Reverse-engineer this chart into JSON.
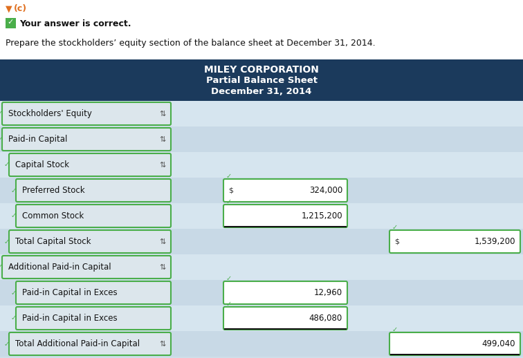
{
  "title_line1": "MILEY CORPORATION",
  "title_line2": "Partial Balance Sheet",
  "title_line3": "December 31, 2014",
  "header_bg": "#1b3a5c",
  "header_text_color": "#ffffff",
  "page_bg": "#cfdee9",
  "row_bg_even": "#d6e5ef",
  "row_bg_odd": "#c8d9e6",
  "green_border": "#4aae4a",
  "green_check_bg": "#4aae4a",
  "label_box_bg": "#dce6ec",
  "value_box_bg": "#ffffff",
  "intro_orange": "#e07020",
  "correct_text": "Your answer is correct.",
  "prepare_text": "Prepare the stockholders’ equity section of the balance sheet at December 31, 2014.",
  "rows": [
    {
      "label": "Stockholders' Equity",
      "indent": 0,
      "type": "header",
      "col2": null,
      "col2_dollar": false,
      "col3": null,
      "col3_dollar": false,
      "underline2": false
    },
    {
      "label": "Paid-in Capital",
      "indent": 0,
      "type": "header",
      "col2": null,
      "col2_dollar": false,
      "col3": null,
      "col3_dollar": false,
      "underline2": false
    },
    {
      "label": "Capital Stock",
      "indent": 1,
      "type": "header",
      "col2": null,
      "col2_dollar": false,
      "col3": null,
      "col3_dollar": false,
      "underline2": false
    },
    {
      "label": "Preferred Stock",
      "indent": 2,
      "type": "value",
      "col2": "324,000",
      "col2_dollar": true,
      "col3": null,
      "col3_dollar": false,
      "underline2": false
    },
    {
      "label": "Common Stock",
      "indent": 2,
      "type": "value",
      "col2": "1,215,200",
      "col2_dollar": false,
      "col3": null,
      "col3_dollar": false,
      "underline2": true
    },
    {
      "label": "Total Capital Stock",
      "indent": 1,
      "type": "header",
      "col2": null,
      "col2_dollar": false,
      "col3": "1,539,200",
      "col3_dollar": true,
      "underline2": false
    },
    {
      "label": "Additional Paid-in Capital",
      "indent": 0,
      "type": "header",
      "col2": null,
      "col2_dollar": false,
      "col3": null,
      "col3_dollar": false,
      "underline2": false
    },
    {
      "label": "Paid-in Capital in Exces",
      "indent": 2,
      "type": "value",
      "col2": "12,960",
      "col2_dollar": false,
      "col3": null,
      "col3_dollar": false,
      "underline2": false
    },
    {
      "label": "Paid-in Capital in Exces",
      "indent": 2,
      "type": "value",
      "col2": "486,080",
      "col2_dollar": false,
      "col3": null,
      "col3_dollar": false,
      "underline2": true
    },
    {
      "label": "Total Additional Paid-in Capital",
      "indent": 1,
      "type": "header",
      "col2": null,
      "col2_dollar": false,
      "col3": "499,040",
      "col3_dollar": false,
      "underline2": false
    }
  ],
  "fig_w": 7.56,
  "fig_h": 5.18,
  "dpi": 100
}
